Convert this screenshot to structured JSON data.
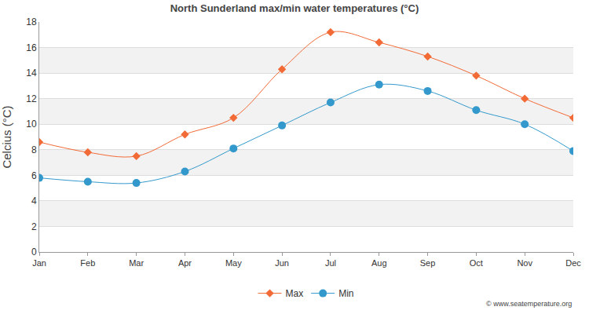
{
  "chart_data": {
    "type": "line",
    "title": "North Sunderland max/min water temperatures (°C)",
    "y_label": "Celcius (°C)",
    "categories": [
      "Jan",
      "Feb",
      "Mar",
      "Apr",
      "May",
      "Jun",
      "Jul",
      "Aug",
      "Sep",
      "Oct",
      "Nov",
      "Dec"
    ],
    "series": [
      {
        "name": "Max",
        "color": "#f26a35",
        "marker": "diamond",
        "line_style": "solid",
        "values": [
          8.6,
          7.8,
          7.5,
          9.2,
          10.5,
          14.3,
          17.2,
          16.4,
          15.3,
          13.8,
          12.0,
          10.5
        ]
      },
      {
        "name": "Min",
        "color": "#3399cc",
        "marker": "circle",
        "line_style": "solid",
        "values": [
          5.8,
          5.5,
          5.4,
          6.3,
          8.1,
          9.9,
          11.7,
          13.1,
          12.6,
          11.1,
          10.0,
          7.9
        ]
      }
    ],
    "ylim": [
      0,
      18
    ],
    "yticks": [
      0,
      2,
      4,
      6,
      8,
      10,
      12,
      14,
      16,
      18
    ],
    "grid": true,
    "legend": "bottom",
    "annotations": [
      "© www.seatemperature.org"
    ]
  }
}
